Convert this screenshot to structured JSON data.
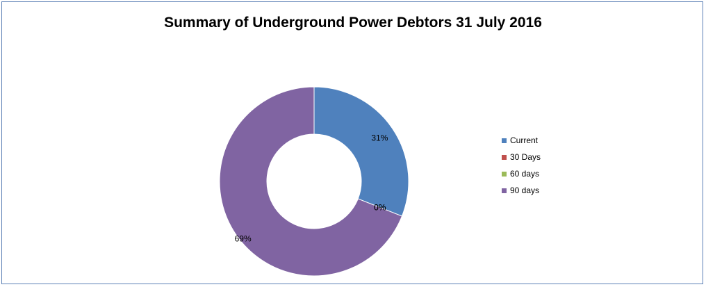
{
  "chart_data": {
    "type": "pie",
    "style": "doughnut",
    "title": "Summary of Underground Power Debtors 31 July 2016",
    "categories": [
      "Current",
      "30 Days",
      "60 days",
      "90 days"
    ],
    "values": [
      31,
      0,
      0,
      69
    ],
    "data_labels": [
      "31%",
      "0%",
      "0%",
      "69%"
    ],
    "colors": [
      "#4f81bd",
      "#c0504d",
      "#9bbb59",
      "#8064a2"
    ],
    "legend_position": "right"
  }
}
